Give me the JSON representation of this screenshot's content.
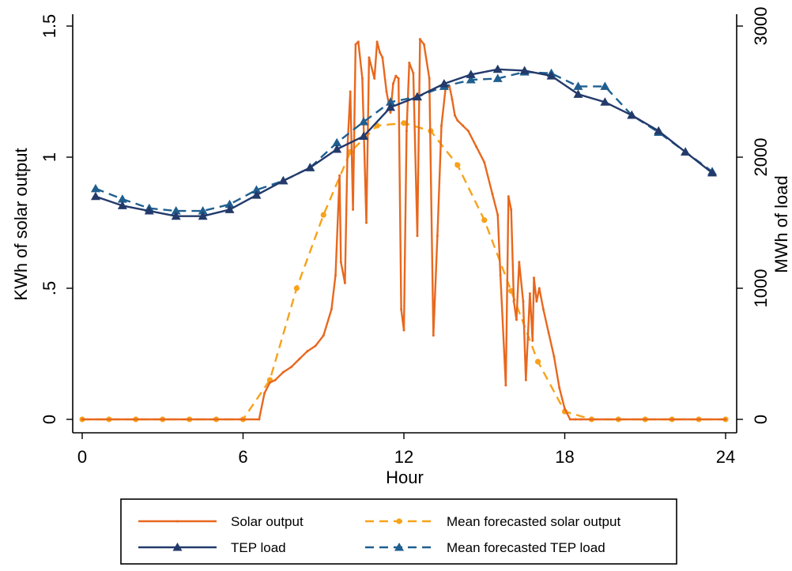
{
  "chart_data": {
    "type": "line",
    "xlabel": "Hour",
    "ylabel_left": "KWh of solar output",
    "ylabel_right": "MWh of load",
    "xlim": [
      0,
      24
    ],
    "ylim_left": [
      0,
      1.5
    ],
    "ylim_right": [
      0,
      3000
    ],
    "x_ticks": [
      0,
      6,
      12,
      18,
      24
    ],
    "x_tick_labels": [
      "0",
      "6",
      "12",
      "18",
      "24"
    ],
    "y_left_ticks": [
      0,
      0.5,
      1,
      1.5
    ],
    "y_left_tick_labels": [
      "0",
      ".5",
      "1",
      "1.5"
    ],
    "y_right_ticks": [
      0,
      1000,
      2000,
      3000
    ],
    "y_right_tick_labels": [
      "0",
      "1000",
      "2000",
      "3000"
    ],
    "grid": false,
    "legend_position": "bottom",
    "series": [
      {
        "name": "Solar output",
        "axis": "left",
        "color": "#e8681e",
        "style": "solid-small-dots",
        "x": [
          0,
          6.6,
          6.8,
          7.0,
          7.2,
          7.5,
          7.8,
          8.1,
          8.4,
          8.7,
          9.0,
          9.3,
          9.45,
          9.6,
          9.65,
          9.8,
          9.9,
          10.0,
          10.1,
          10.2,
          10.3,
          10.45,
          10.6,
          10.7,
          10.9,
          11.0,
          11.1,
          11.2,
          11.35,
          11.5,
          11.6,
          11.7,
          11.8,
          11.9,
          12.0,
          12.1,
          12.2,
          12.35,
          12.5,
          12.6,
          12.75,
          12.95,
          13.1,
          13.25,
          13.4,
          13.55,
          13.7,
          13.8,
          13.9,
          14.0,
          14.2,
          14.4,
          14.7,
          15.0,
          15.3,
          15.5,
          15.6,
          15.8,
          15.9,
          16.0,
          16.1,
          16.2,
          16.3,
          16.45,
          16.55,
          16.7,
          16.8,
          16.85,
          16.95,
          17.05,
          17.2,
          17.4,
          17.6,
          17.8,
          18.0,
          18.2,
          18.4,
          18.6,
          19,
          20,
          21,
          22,
          23,
          24
        ],
        "values": [
          0,
          0,
          0.1,
          0.14,
          0.15,
          0.18,
          0.2,
          0.23,
          0.26,
          0.28,
          0.32,
          0.42,
          0.55,
          0.93,
          0.6,
          0.52,
          1.05,
          1.25,
          0.8,
          1.43,
          1.44,
          1.3,
          0.75,
          1.38,
          1.3,
          1.44,
          1.4,
          1.38,
          1.25,
          1.17,
          1.28,
          1.31,
          1.3,
          0.42,
          0.34,
          1.1,
          1.36,
          1.32,
          0.7,
          1.45,
          1.43,
          1.3,
          0.32,
          0.7,
          1.12,
          1.26,
          1.27,
          1.22,
          1.16,
          1.14,
          1.12,
          1.1,
          1.04,
          0.98,
          0.86,
          0.78,
          0.55,
          0.13,
          0.85,
          0.8,
          0.45,
          0.38,
          0.6,
          0.45,
          0.15,
          0.48,
          0.3,
          0.54,
          0.45,
          0.5,
          0.42,
          0.33,
          0.24,
          0.12,
          0.04,
          0,
          0,
          0,
          0,
          0,
          0,
          0,
          0,
          0
        ]
      },
      {
        "name": "Mean forecasted solar output",
        "axis": "left",
        "color": "#f7a21a",
        "style": "dashed-circles",
        "x": [
          0,
          1,
          2,
          3,
          4,
          5,
          6,
          7,
          8,
          9,
          10,
          11,
          12,
          13,
          14,
          15,
          16,
          17,
          18,
          19,
          20,
          21,
          22,
          23,
          24
        ],
        "values": [
          0,
          0,
          0,
          0,
          0,
          0,
          0,
          0.15,
          0.5,
          0.78,
          1.02,
          1.12,
          1.13,
          1.1,
          0.97,
          0.76,
          0.49,
          0.22,
          0.03,
          0,
          0,
          0,
          0,
          0,
          0
        ]
      },
      {
        "name": "TEP load",
        "axis": "right",
        "color": "#233a6b",
        "style": "solid-triangles",
        "x": [
          0.5,
          1.5,
          2.5,
          3.5,
          4.5,
          5.5,
          6.5,
          7.5,
          8.5,
          9.5,
          10.5,
          11.5,
          12.5,
          13.5,
          14.5,
          15.5,
          16.5,
          17.5,
          18.5,
          19.5,
          20.5,
          21.5,
          22.5,
          23.5
        ],
        "values": [
          1700,
          1630,
          1590,
          1550,
          1550,
          1600,
          1710,
          1820,
          1920,
          2060,
          2160,
          2380,
          2460,
          2560,
          2630,
          2670,
          2660,
          2620,
          2480,
          2420,
          2320,
          2200,
          2040,
          1880
        ]
      },
      {
        "name": "Mean forecasted TEP load",
        "axis": "right",
        "color": "#1f5f8f",
        "style": "dashed-triangles",
        "x": [
          0.5,
          1.5,
          2.5,
          3.5,
          4.5,
          5.5,
          6.5,
          7.5,
          8.5,
          9.5,
          10.5,
          11.5,
          12.5,
          13.5,
          14.5,
          15.5,
          16.5,
          17.5,
          18.5,
          19.5,
          20.5,
          21.5,
          22.5,
          23.5
        ],
        "values": [
          1760,
          1680,
          1610,
          1590,
          1590,
          1640,
          1750,
          1820,
          1920,
          2110,
          2270,
          2420,
          2460,
          2540,
          2590,
          2600,
          2650,
          2640,
          2540,
          2540,
          2320,
          2190,
          2040,
          1890
        ]
      }
    ]
  }
}
